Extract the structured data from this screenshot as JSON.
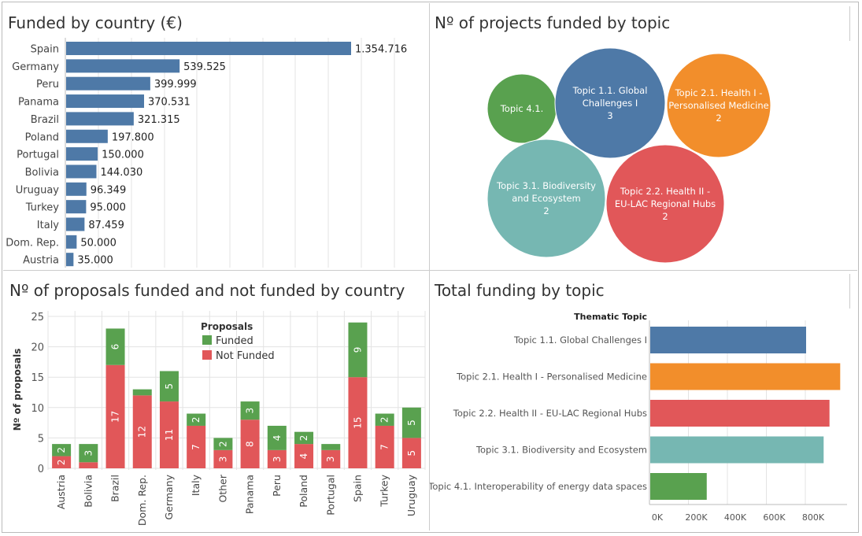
{
  "colors": {
    "bar_blue": "#4e79a7",
    "funded": "#59a14f",
    "not_funded": "#e15759",
    "orange": "#f28e2b",
    "teal": "#76b7b2",
    "grid": "#e3e3e3"
  },
  "panels": {
    "funded_by_country": {
      "title": "Funded by country (€)"
    },
    "projects_by_topic": {
      "title": "Nº of projects funded by topic"
    },
    "proposals_by_country": {
      "title": "Nº of proposals funded and not funded by country"
    },
    "funding_by_topic": {
      "title": "Total funding by topic"
    }
  },
  "chart_data": [
    {
      "id": "funded_by_country",
      "type": "bar",
      "orientation": "horizontal",
      "title": "Funded by country (€)",
      "categories": [
        "Spain",
        "Germany",
        "Peru",
        "Panama",
        "Brazil",
        "Poland",
        "Portugal",
        "Bolivia",
        "Uruguay",
        "Turkey",
        "Italy",
        "Dom. Rep.",
        "Austria"
      ],
      "values": [
        1354716,
        539525,
        399999,
        370531,
        321315,
        197800,
        150000,
        144030,
        96349,
        95000,
        87459,
        50000,
        35000
      ],
      "labels": [
        "1.354.716",
        "539.525",
        "399.999",
        "370.531",
        "321.315",
        "197.800",
        "150.000",
        "144.030",
        "96.349",
        "95.000",
        "87.459",
        "50.000",
        "35.000"
      ],
      "grid": true
    },
    {
      "id": "projects_by_topic",
      "type": "bubble",
      "title": "Nº of projects funded by topic",
      "bubbles": [
        {
          "label": "Topic 4.1.",
          "value": 1,
          "color": "#59a14f",
          "show_value": false
        },
        {
          "label": "Topic 1.1. Global Challenges I",
          "value": 3,
          "color": "#4e79a7",
          "show_value": true
        },
        {
          "label": "Topic 2.1.  Health I - Personalised Medicine",
          "value": 2,
          "color": "#f28e2b",
          "show_value": true
        },
        {
          "label": "Topic 3.1. Biodiversity and Ecosystem",
          "value": 2,
          "color": "#76b7b2",
          "show_value": true
        },
        {
          "label": "Topic 2.2.  Health II - EU-LAC Regional Hubs",
          "value": 2,
          "color": "#e15759",
          "show_value": true
        }
      ]
    },
    {
      "id": "proposals_by_country",
      "type": "bar",
      "stacked": true,
      "title": "Nº of proposals funded and not funded by country",
      "ylabel": "Nº of proposals",
      "ylim": [
        0,
        25
      ],
      "yticks": [
        0,
        5,
        10,
        15,
        20,
        25
      ],
      "legend_title": "Proposals",
      "legend_position": "top-center",
      "categories": [
        "Austria",
        "Bolivia",
        "Brazil",
        "Dom. Rep.",
        "Germany",
        "Italy",
        "Other",
        "Panama",
        "Peru",
        "Poland",
        "Portugal",
        "Spain",
        "Turkey",
        "Uruguay"
      ],
      "series": [
        {
          "name": "Not Funded",
          "color": "#e15759",
          "values": [
            2,
            1,
            17,
            12,
            11,
            7,
            3,
            8,
            3,
            4,
            3,
            15,
            7,
            5
          ],
          "labels": [
            "2",
            "",
            "17",
            "12",
            "11",
            "7",
            "3",
            "8",
            "3",
            "4",
            "3",
            "15",
            "7",
            "5"
          ]
        },
        {
          "name": "Funded",
          "color": "#59a14f",
          "values": [
            2,
            3,
            6,
            1,
            5,
            2,
            2,
            3,
            4,
            2,
            1,
            9,
            2,
            5
          ],
          "labels": [
            "2",
            "3",
            "6",
            "",
            "5",
            "2",
            "2",
            "3",
            "4",
            "2",
            "",
            "9",
            "2",
            "5"
          ]
        }
      ],
      "grid": true
    },
    {
      "id": "funding_by_topic",
      "type": "bar",
      "orientation": "horizontal",
      "title": "Total funding by topic",
      "header": "Thematic Topic",
      "categories": [
        "Topic 1.1. Global Challenges I",
        "Topic 2.1.  Health I - Personalised Medicine",
        "Topic 2.2.  Health II - EU-LAC Regional Hubs",
        "Topic 3.1. Biodiversity and Ecosystem",
        "Topic 4.1. Interoperability of energy data spaces"
      ],
      "values": [
        800000,
        975000,
        920000,
        890000,
        290000
      ],
      "colors": [
        "#4e79a7",
        "#f28e2b",
        "#e15759",
        "#76b7b2",
        "#59a14f"
      ],
      "xlim": [
        0,
        1000000
      ],
      "xticks": [
        0,
        200000,
        400000,
        600000,
        800000
      ],
      "xticklabels": [
        "0K",
        "200K",
        "400K",
        "600K",
        "800K"
      ],
      "grid": true
    }
  ]
}
